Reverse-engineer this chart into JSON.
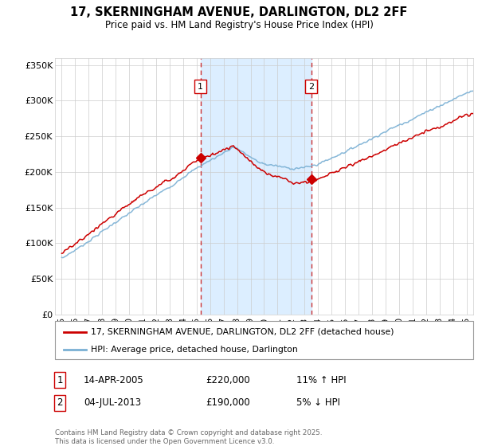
{
  "title": "17, SKERNINGHAM AVENUE, DARLINGTON, DL2 2FF",
  "subtitle": "Price paid vs. HM Land Registry's House Price Index (HPI)",
  "ylabel_ticks": [
    "£0",
    "£50K",
    "£100K",
    "£150K",
    "£200K",
    "£250K",
    "£300K",
    "£350K"
  ],
  "ytick_vals": [
    0,
    50000,
    100000,
    150000,
    200000,
    250000,
    300000,
    350000
  ],
  "ylim": [
    0,
    360000
  ],
  "xlim_start": 1994.5,
  "xlim_end": 2025.5,
  "sale1_x": 2005.28,
  "sale1_y": 220000,
  "sale2_x": 2013.5,
  "sale2_y": 190000,
  "sale1_label": "1",
  "sale2_label": "2",
  "sale1_date": "14-APR-2005",
  "sale1_price": "£220,000",
  "sale1_hpi": "11% ↑ HPI",
  "sale2_date": "04-JUL-2013",
  "sale2_price": "£190,000",
  "sale2_hpi": "5% ↓ HPI",
  "line_color_property": "#cc0000",
  "line_color_hpi": "#7ab0d4",
  "vline_color": "#cc3333",
  "grid_color": "#cccccc",
  "bg_color": "#ffffff",
  "span_color": "#dceeff",
  "legend_label_property": "17, SKERNINGHAM AVENUE, DARLINGTON, DL2 2FF (detached house)",
  "legend_label_hpi": "HPI: Average price, detached house, Darlington",
  "footnote": "Contains HM Land Registry data © Crown copyright and database right 2025.\nThis data is licensed under the Open Government Licence v3.0.",
  "xtick_years": [
    1995,
    1996,
    1997,
    1998,
    1999,
    2000,
    2001,
    2002,
    2003,
    2004,
    2005,
    2006,
    2007,
    2008,
    2009,
    2010,
    2011,
    2012,
    2013,
    2014,
    2015,
    2016,
    2017,
    2018,
    2019,
    2020,
    2021,
    2022,
    2023,
    2024,
    2025
  ]
}
